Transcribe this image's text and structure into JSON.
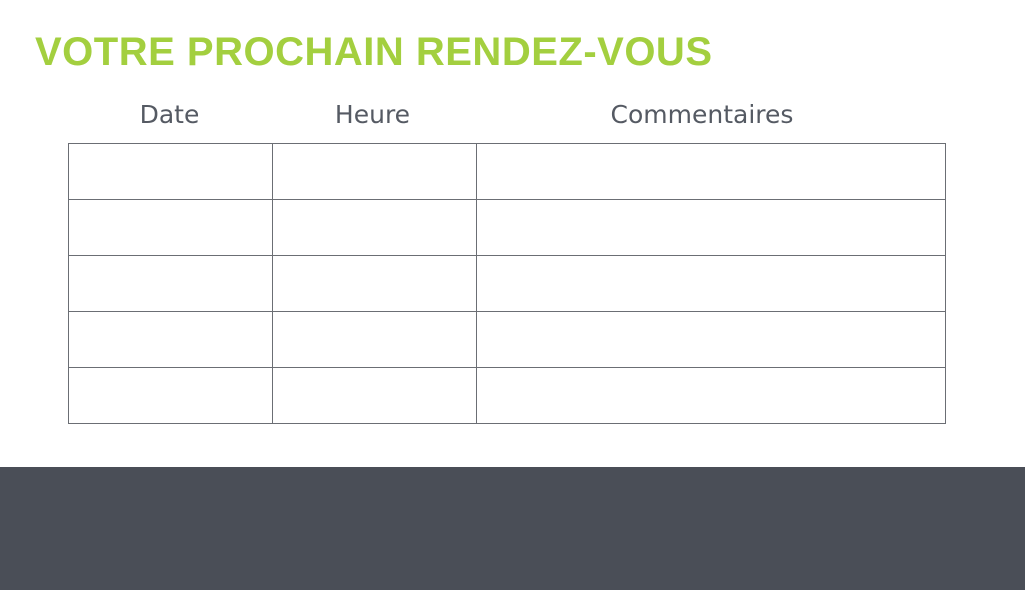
{
  "title": "VOTRE PROCHAIN RENDEZ-VOUS",
  "table": {
    "headers": [
      "Date",
      "Heure",
      "Commentaires"
    ],
    "rows": [
      [
        "",
        "",
        ""
      ],
      [
        "",
        "",
        ""
      ],
      [
        "",
        "",
        ""
      ],
      [
        "",
        "",
        ""
      ],
      [
        "",
        "",
        ""
      ]
    ]
  },
  "colors": {
    "accent": "#a3cf3f",
    "footer": "#4a4e57",
    "text": "#555a63"
  }
}
